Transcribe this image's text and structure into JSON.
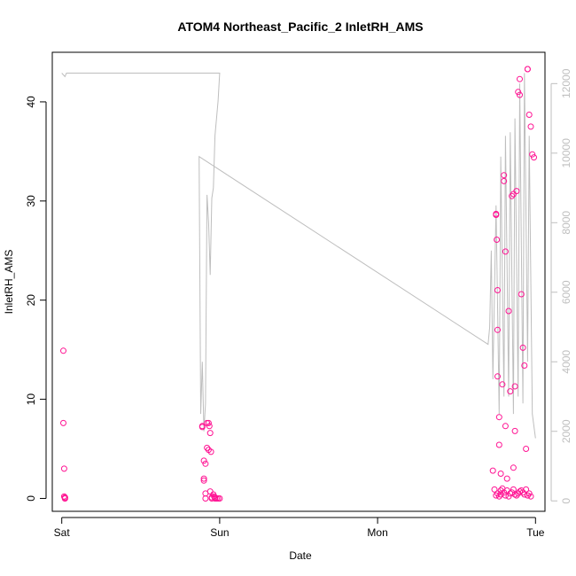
{
  "chart_data": {
    "type": "scatter",
    "title": "ATOM4 Northeast_Pacific_2 InletRH_AMS",
    "xlabel": "Date",
    "ylabel": "InletRH_AMS",
    "x_ticks": [
      "Sat",
      "Sun",
      "Mon",
      "Tue"
    ],
    "y_ticks": [
      0,
      10,
      20,
      30,
      40
    ],
    "y2_ticks": [
      0,
      2000,
      4000,
      6000,
      8000,
      10000,
      12000
    ],
    "xlim_days": [
      -0.06,
      3.06
    ],
    "ylim": [
      -1.3,
      45
    ],
    "y2lim": [
      -300,
      12900
    ],
    "point_color": "#ff1493",
    "line_color": "#bebebe",
    "point_days": [
      0.01,
      0.01,
      0.015,
      0.015,
      0.02,
      0.02,
      0.02,
      0.02,
      0.89,
      0.89,
      0.9,
      0.9,
      0.9,
      0.91,
      0.91,
      0.91,
      0.92,
      0.92,
      0.93,
      0.93,
      0.935,
      0.94,
      0.94,
      0.945,
      0.95,
      0.95,
      0.96,
      0.965,
      0.97,
      0.97,
      0.98,
      0.99,
      1.0,
      2.73,
      2.74,
      2.75,
      2.75,
      2.755,
      2.76,
      2.76,
      2.76,
      2.77,
      2.77,
      2.78,
      2.78,
      2.79,
      2.8,
      2.8,
      2.81,
      2.81,
      2.82,
      2.83,
      2.84,
      2.85,
      2.86,
      2.86,
      2.87,
      2.87,
      2.88,
      2.89,
      2.9,
      2.9,
      2.91,
      2.92,
      2.93,
      2.94,
      2.95,
      2.95,
      2.96,
      2.97,
      2.98,
      2.99,
      2.75,
      2.76,
      2.77,
      2.78,
      2.79,
      2.8,
      2.81,
      2.82,
      2.83,
      2.84,
      2.85,
      2.86,
      2.87,
      2.88,
      2.89,
      2.9,
      2.91,
      2.92,
      2.93,
      2.94,
      2.95,
      2.96,
      2.97
    ],
    "point_values": [
      14.9,
      7.6,
      3.0,
      0.2,
      0.1,
      0.0,
      0.1,
      0.0,
      7.2,
      7.3,
      2.0,
      1.8,
      3.8,
      3.5,
      0.0,
      0.5,
      5.1,
      7.6,
      4.9,
      7.6,
      7.3,
      6.6,
      0.7,
      4.7,
      0.0,
      0.1,
      0.4,
      0.2,
      0.1,
      0.0,
      0.0,
      0.0,
      0.0,
      2.8,
      0.9,
      28.6,
      28.7,
      26.1,
      21.0,
      17.0,
      12.3,
      8.2,
      5.4,
      2.5,
      0.8,
      11.5,
      32.6,
      32.0,
      24.9,
      7.3,
      2.0,
      18.9,
      10.8,
      30.5,
      30.7,
      3.1,
      6.8,
      11.3,
      31.0,
      41.0,
      40.7,
      42.3,
      20.6,
      15.2,
      13.4,
      5.0,
      43.3,
      43.3,
      38.7,
      37.5,
      34.7,
      34.4,
      0.3,
      0.5,
      0.2,
      0.4,
      1.0,
      0.6,
      0.3,
      0.8,
      0.2,
      0.5,
      0.6,
      0.9,
      0.4,
      0.3,
      0.5,
      0.7,
      0.8,
      0.6,
      0.4,
      0.9,
      0.3,
      0.5,
      0.2
    ],
    "line_days": [
      0.0,
      0.02,
      0.03,
      0.99,
      1.0,
      0.99,
      0.97,
      0.96,
      0.95,
      0.94,
      0.93,
      0.92,
      0.91,
      0.9,
      0.89,
      0.88,
      0.87,
      2.7,
      2.71,
      2.72,
      2.73,
      2.75,
      2.77,
      2.78,
      2.8,
      2.81,
      2.83,
      2.84,
      2.86,
      2.87,
      2.89,
      2.9,
      2.92,
      2.93,
      2.95,
      2.96,
      2.98,
      3.0
    ],
    "line_values": [
      12300,
      12200,
      12300,
      12300,
      12300,
      11500,
      10500,
      9000,
      8700,
      6500,
      8000,
      8800,
      2800,
      2000,
      4000,
      2500,
      9900,
      4500,
      5000,
      7200,
      3500,
      8500,
      2500,
      9900,
      3000,
      10500,
      3000,
      10600,
      2500,
      11000,
      3000,
      12000,
      2800,
      12300,
      4000,
      10500,
      2500,
      1800
    ]
  }
}
